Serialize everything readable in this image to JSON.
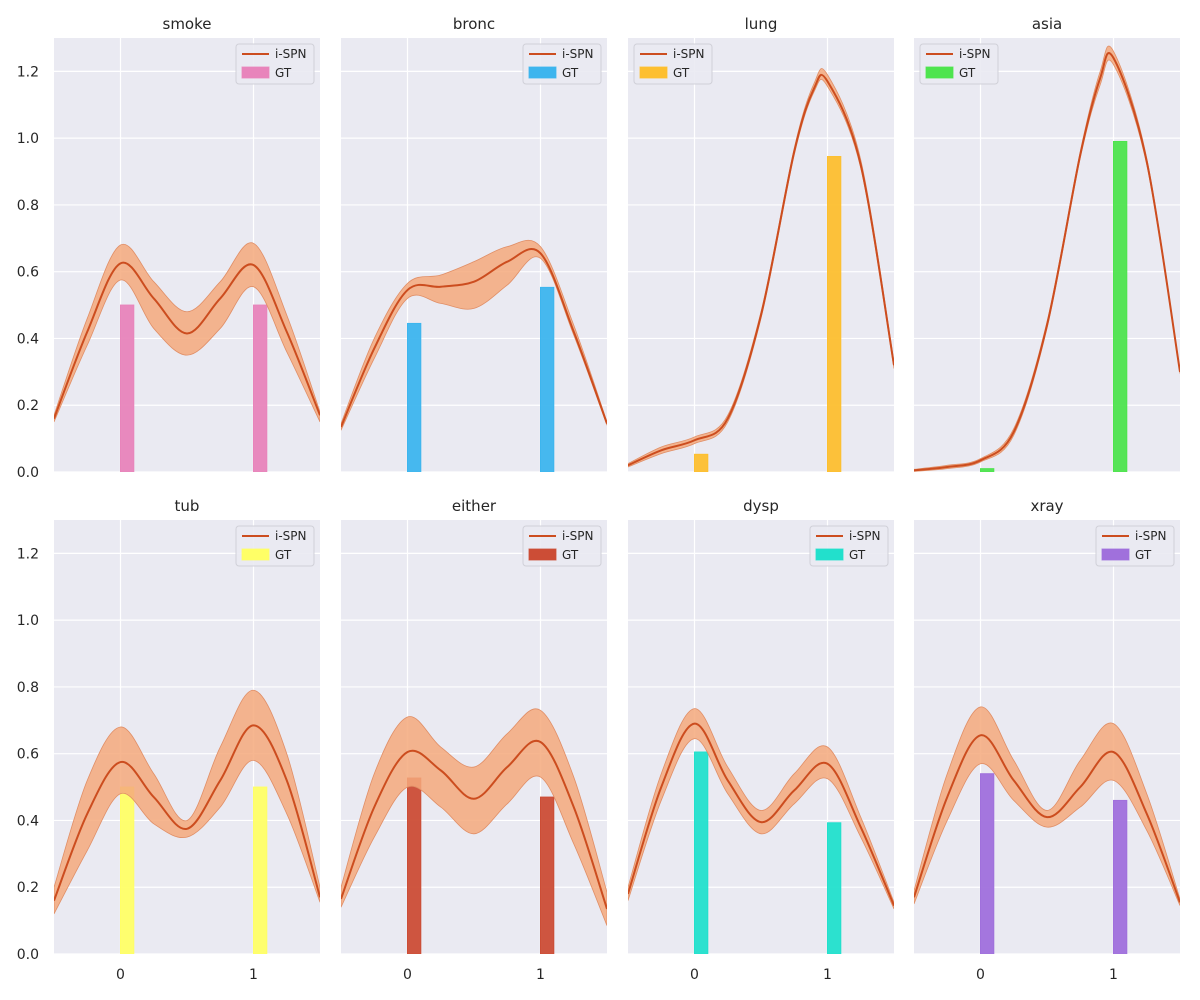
{
  "figure": {
    "style": "seaborn-darkgrid",
    "panel_background": "#eaeaf2",
    "grid_color": "#ffffff",
    "curve_color": "#cc4d1f",
    "band_color": "#f4a97c"
  },
  "chart_data": [
    {
      "type": "line+bar",
      "title": "smoke",
      "legend": [
        "i-SPN",
        "GT"
      ],
      "legend_position": "top-right",
      "x_ticks": [
        0,
        1
      ],
      "xlim": [
        -0.5,
        1.5
      ],
      "ylim": [
        0,
        1.3
      ],
      "y_ticks": [
        0.0,
        0.2,
        0.4,
        0.6,
        0.8,
        1.0,
        1.2
      ],
      "grid": true,
      "gt": {
        "name": "GT",
        "color": "#e884bb",
        "categories": [
          0,
          1
        ],
        "values": [
          0.5,
          0.5
        ]
      },
      "ispn": {
        "name": "i-SPN",
        "x": [
          -0.5,
          -0.25,
          0.0,
          0.25,
          0.5,
          0.75,
          1.0,
          1.25,
          1.5
        ],
        "mean": [
          0.16,
          0.42,
          0.625,
          0.52,
          0.415,
          0.52,
          0.62,
          0.42,
          0.17
        ],
        "lower": [
          0.15,
          0.38,
          0.575,
          0.43,
          0.35,
          0.43,
          0.555,
          0.36,
          0.15
        ],
        "upper": [
          0.17,
          0.46,
          0.68,
          0.57,
          0.48,
          0.57,
          0.685,
          0.47,
          0.18
        ]
      }
    },
    {
      "type": "line+bar",
      "title": "bronc",
      "legend": [
        "i-SPN",
        "GT"
      ],
      "legend_position": "top-right",
      "x_ticks": [
        0,
        1
      ],
      "xlim": [
        -0.5,
        1.5
      ],
      "ylim": [
        0,
        1.3
      ],
      "y_ticks": [
        0.0,
        0.2,
        0.4,
        0.6,
        0.8,
        1.0,
        1.2
      ],
      "grid": true,
      "gt": {
        "name": "GT",
        "color": "#3db5ee",
        "categories": [
          0,
          1
        ],
        "values": [
          0.445,
          0.553
        ]
      },
      "ispn": {
        "name": "i-SPN",
        "x": [
          -0.5,
          -0.25,
          0.0,
          0.25,
          0.5,
          0.75,
          1.0,
          1.25,
          1.5
        ],
        "mean": [
          0.135,
          0.37,
          0.545,
          0.555,
          0.57,
          0.63,
          0.655,
          0.42,
          0.145
        ],
        "lower": [
          0.125,
          0.34,
          0.52,
          0.505,
          0.49,
          0.56,
          0.64,
          0.41,
          0.14
        ],
        "upper": [
          0.145,
          0.4,
          0.565,
          0.59,
          0.63,
          0.675,
          0.675,
          0.44,
          0.15
        ]
      }
    },
    {
      "type": "line+bar",
      "title": "lung",
      "legend": [
        "i-SPN",
        "GT"
      ],
      "legend_position": "top-left",
      "x_ticks": [
        0,
        1
      ],
      "xlim": [
        -0.5,
        1.5
      ],
      "ylim": [
        0,
        1.3
      ],
      "y_ticks": [
        0.0,
        0.2,
        0.4,
        0.6,
        0.8,
        1.0,
        1.2
      ],
      "grid": true,
      "gt": {
        "name": "GT",
        "color": "#fdbf2f",
        "categories": [
          0,
          1
        ],
        "values": [
          0.053,
          0.945
        ]
      },
      "ispn": {
        "name": "i-SPN",
        "x": [
          -0.5,
          -0.25,
          0.0,
          0.25,
          0.5,
          0.75,
          0.9,
          1.0,
          1.25,
          1.5
        ],
        "mean": [
          0.02,
          0.065,
          0.095,
          0.16,
          0.47,
          0.96,
          1.15,
          1.17,
          0.92,
          0.32
        ],
        "lower": [
          0.015,
          0.055,
          0.085,
          0.15,
          0.46,
          0.95,
          1.14,
          1.155,
          0.91,
          0.31
        ],
        "upper": [
          0.025,
          0.075,
          0.105,
          0.17,
          0.48,
          0.97,
          1.165,
          1.19,
          0.935,
          0.33
        ]
      }
    },
    {
      "type": "line+bar",
      "title": "asia",
      "legend": [
        "i-SPN",
        "GT"
      ],
      "legend_position": "top-left",
      "x_ticks": [
        0,
        1
      ],
      "xlim": [
        -0.5,
        1.5
      ],
      "ylim": [
        0,
        1.3
      ],
      "y_ticks": [
        0.0,
        0.2,
        0.4,
        0.6,
        0.8,
        1.0,
        1.2
      ],
      "grid": true,
      "gt": {
        "name": "GT",
        "color": "#4ee44e",
        "categories": [
          0,
          1
        ],
        "values": [
          0.01,
          0.99
        ]
      },
      "ispn": {
        "name": "i-SPN",
        "x": [
          -0.5,
          -0.25,
          0.0,
          0.25,
          0.5,
          0.75,
          0.9,
          1.0,
          1.25,
          1.5
        ],
        "mean": [
          0.005,
          0.015,
          0.035,
          0.12,
          0.44,
          0.95,
          1.18,
          1.24,
          0.93,
          0.3
        ],
        "lower": [
          0.002,
          0.01,
          0.03,
          0.11,
          0.43,
          0.94,
          1.16,
          1.22,
          0.92,
          0.295
        ],
        "upper": [
          0.008,
          0.02,
          0.04,
          0.13,
          0.45,
          0.96,
          1.2,
          1.26,
          0.94,
          0.305
        ]
      }
    },
    {
      "type": "line+bar",
      "title": "tub",
      "legend": [
        "i-SPN",
        "GT"
      ],
      "legend_position": "top-right",
      "x_ticks": [
        0,
        1
      ],
      "xlim": [
        -0.5,
        1.5
      ],
      "ylim": [
        0,
        1.3
      ],
      "y_ticks": [
        0.0,
        0.2,
        0.4,
        0.6,
        0.8,
        1.0,
        1.2
      ],
      "grid": true,
      "gt": {
        "name": "GT",
        "color": "#ffff66",
        "categories": [
          0,
          1
        ],
        "values": [
          0.5,
          0.5
        ]
      },
      "ispn": {
        "name": "i-SPN",
        "x": [
          -0.5,
          -0.25,
          0.0,
          0.25,
          0.5,
          0.75,
          1.0,
          1.25,
          1.5
        ],
        "mean": [
          0.16,
          0.42,
          0.575,
          0.47,
          0.375,
          0.52,
          0.685,
          0.52,
          0.17
        ],
        "lower": [
          0.12,
          0.31,
          0.48,
          0.39,
          0.35,
          0.44,
          0.58,
          0.42,
          0.155
        ],
        "upper": [
          0.2,
          0.52,
          0.68,
          0.54,
          0.4,
          0.62,
          0.79,
          0.6,
          0.2
        ]
      }
    },
    {
      "type": "line+bar",
      "title": "either",
      "legend": [
        "i-SPN",
        "GT"
      ],
      "legend_position": "top-right",
      "x_ticks": [
        0,
        1
      ],
      "xlim": [
        -0.5,
        1.5
      ],
      "ylim": [
        0,
        1.3
      ],
      "y_ticks": [
        0.0,
        0.2,
        0.4,
        0.6,
        0.8,
        1.0,
        1.2
      ],
      "grid": true,
      "gt": {
        "name": "GT",
        "color": "#cc4d36",
        "categories": [
          0,
          1
        ],
        "values": [
          0.527,
          0.47
        ]
      },
      "ispn": {
        "name": "i-SPN",
        "x": [
          -0.5,
          -0.25,
          0.0,
          0.25,
          0.5,
          0.75,
          1.0,
          1.25,
          1.5
        ],
        "mean": [
          0.165,
          0.44,
          0.605,
          0.55,
          0.465,
          0.56,
          0.635,
          0.44,
          0.135
        ],
        "lower": [
          0.14,
          0.35,
          0.5,
          0.44,
          0.36,
          0.45,
          0.53,
          0.33,
          0.085
        ],
        "upper": [
          0.2,
          0.54,
          0.71,
          0.62,
          0.56,
          0.66,
          0.73,
          0.53,
          0.185
        ]
      }
    },
    {
      "type": "line+bar",
      "title": "dysp",
      "legend": [
        "i-SPN",
        "GT"
      ],
      "legend_position": "top-right",
      "x_ticks": [
        0,
        1
      ],
      "xlim": [
        -0.5,
        1.5
      ],
      "ylim": [
        0,
        1.3
      ],
      "y_ticks": [
        0.0,
        0.2,
        0.4,
        0.6,
        0.8,
        1.0,
        1.2
      ],
      "grid": true,
      "gt": {
        "name": "GT",
        "color": "#22e0cc",
        "categories": [
          0,
          1
        ],
        "values": [
          0.605,
          0.393
        ]
      },
      "ispn": {
        "name": "i-SPN",
        "x": [
          -0.5,
          -0.25,
          0.0,
          0.25,
          0.5,
          0.75,
          1.0,
          1.25,
          1.5
        ],
        "mean": [
          0.18,
          0.5,
          0.69,
          0.52,
          0.395,
          0.49,
          0.57,
          0.38,
          0.145
        ],
        "lower": [
          0.16,
          0.46,
          0.645,
          0.48,
          0.36,
          0.45,
          0.525,
          0.35,
          0.135
        ],
        "upper": [
          0.2,
          0.54,
          0.735,
          0.56,
          0.43,
          0.54,
          0.62,
          0.41,
          0.155
        ]
      }
    },
    {
      "type": "line+bar",
      "title": "xray",
      "legend": [
        "i-SPN",
        "GT"
      ],
      "legend_position": "top-right",
      "x_ticks": [
        0,
        1
      ],
      "xlim": [
        -0.5,
        1.5
      ],
      "ylim": [
        0,
        1.3
      ],
      "y_ticks": [
        0.0,
        0.2,
        0.4,
        0.6,
        0.8,
        1.0,
        1.2
      ],
      "grid": true,
      "gt": {
        "name": "GT",
        "color": "#a070dc",
        "categories": [
          0,
          1
        ],
        "values": [
          0.54,
          0.46
        ]
      },
      "ispn": {
        "name": "i-SPN",
        "x": [
          -0.5,
          -0.25,
          0.0,
          0.25,
          0.5,
          0.75,
          1.0,
          1.25,
          1.5
        ],
        "mean": [
          0.17,
          0.47,
          0.655,
          0.52,
          0.41,
          0.5,
          0.605,
          0.42,
          0.155
        ],
        "lower": [
          0.15,
          0.4,
          0.57,
          0.46,
          0.38,
          0.44,
          0.52,
          0.37,
          0.145
        ],
        "upper": [
          0.19,
          0.54,
          0.74,
          0.58,
          0.43,
          0.58,
          0.69,
          0.48,
          0.165
        ]
      }
    }
  ]
}
